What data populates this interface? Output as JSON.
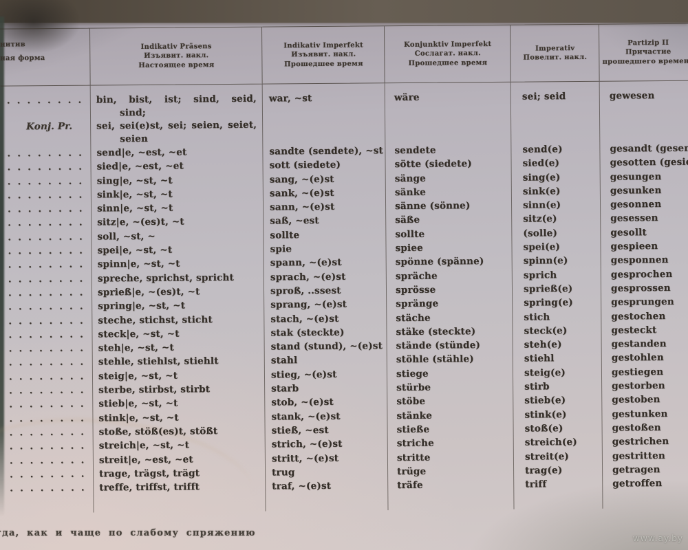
{
  "page": {
    "bottom_note": "гда, как и чаще по слабому спряжению",
    "watermark": "www.ay.by",
    "colors": {
      "paper": "#c2bec3",
      "paper_bottom": "#d2c9c8",
      "top_band": "#574f44",
      "ink": "#332d27",
      "rule": "#3c362e"
    }
  },
  "table": {
    "dot_leader": ". . . . . . . .",
    "headers": {
      "infinitive": {
        "lines": [
          "нитив",
          "ная форма"
        ]
      },
      "praesens": {
        "lines": [
          "Indikativ Präsens",
          "Изъявит. накл.",
          "Настоящее время"
        ]
      },
      "imperfekt": {
        "lines": [
          "Indikativ Imperfekt",
          "Изъявит. накл.",
          "Прошедшее время"
        ]
      },
      "konjunktiv": {
        "lines": [
          "Konjunktiv Imperfekt",
          "Сослагат. накл.",
          "Прошедшее время"
        ]
      },
      "imperativ": {
        "lines": [
          "Imperativ",
          "Повелит. накл."
        ]
      },
      "partizip": {
        "lines": [
          "Partizip II",
          "Причастие",
          "прошедшего времени"
        ]
      }
    },
    "sein_row": {
      "leader": ". . . . . . . .",
      "label": "Konj. Pr.",
      "praesens_lines": [
        "bin, bist, ist; sind, seid,",
        "sind;",
        "sei, sei(e)st, sei; seien, seiet,",
        "seien"
      ],
      "imperfekt": "war, ~st",
      "konjunktiv": "wäre",
      "imperativ": "sei; seid",
      "partizip": "gewesen"
    },
    "rows": [
      {
        "praesens": "send|e, ~est, ~et",
        "imperfekt": "sandte (sendete), ~st",
        "konjunktiv": "sendete",
        "imperativ": "send(e)",
        "partizip": "gesandt (gesendet)"
      },
      {
        "praesens": "sied|e, ~est, ~et",
        "imperfekt": "sott (siedete)",
        "konjunktiv": "sötte (siedete)",
        "imperativ": "sied(e)",
        "partizip": "gesotten (gesiedet)"
      },
      {
        "praesens": "sing|e, ~st, ~t",
        "imperfekt": "sang, ~(e)st",
        "konjunktiv": "sänge",
        "imperativ": "sing(e)",
        "partizip": "gesungen"
      },
      {
        "praesens": "sink|e, ~st, ~t",
        "imperfekt": "sank, ~(e)st",
        "konjunktiv": "sänke",
        "imperativ": "sink(e)",
        "partizip": "gesunken"
      },
      {
        "praesens": "sinn|e, ~st, ~t",
        "imperfekt": "sann, ~(e)st",
        "konjunktiv": "sänne (sönne)",
        "imperativ": "sinn(e)",
        "partizip": "gesonnen"
      },
      {
        "praesens": "sitz|e, ~(es)t, ~t",
        "imperfekt": "saß, ~est",
        "konjunktiv": "säße",
        "imperativ": "sitz(e)",
        "partizip": "gesessen"
      },
      {
        "praesens": "soll, ~st, ~",
        "imperfekt": "sollte",
        "konjunktiv": "sollte",
        "imperativ": "(solle)",
        "partizip": "gesollt"
      },
      {
        "praesens": "spei|e, ~st, ~t",
        "imperfekt": "spie",
        "konjunktiv": "spiee",
        "imperativ": "spei(e)",
        "partizip": "gespieen"
      },
      {
        "praesens": "spinn|e, ~st, ~t",
        "imperfekt": "spann, ~(e)st",
        "konjunktiv": "spönne (spänne)",
        "imperativ": "spinn(e)",
        "partizip": "gesponnen"
      },
      {
        "praesens": "spreche, sprichst, spricht",
        "imperfekt": "sprach, ~(e)st",
        "konjunktiv": "spräche",
        "imperativ": "sprich",
        "partizip": "gesprochen"
      },
      {
        "praesens": "sprieß|e, ~(es)t, ~t",
        "imperfekt": "sproß, ..ssest",
        "konjunktiv": "sprösse",
        "imperativ": "sprieß(e)",
        "partizip": "gesprossen"
      },
      {
        "praesens": "spring|e, ~st, ~t",
        "imperfekt": "sprang, ~(e)st",
        "konjunktiv": "spränge",
        "imperativ": "spring(e)",
        "partizip": "gesprungen"
      },
      {
        "praesens": "steche, stichst, sticht",
        "imperfekt": "stach, ~(e)st",
        "konjunktiv": "stäche",
        "imperativ": "stich",
        "partizip": "gestochen"
      },
      {
        "praesens": "steck|e, ~st, ~t",
        "imperfekt": "stak (steckte)",
        "konjunktiv": "stäke (steckte)",
        "imperativ": "steck(e)",
        "partizip": "gesteckt"
      },
      {
        "praesens": "steh|e, ~st, ~t",
        "imperfekt": "stand (stund), ~(e)st",
        "konjunktiv": "stände (stünde)",
        "imperativ": "steh(e)",
        "partizip": "gestanden"
      },
      {
        "praesens": "stehle, stiehlst, stiehlt",
        "imperfekt": "stahl",
        "konjunktiv": "stöhle (stähle)",
        "imperativ": "stiehl",
        "partizip": "gestohlen"
      },
      {
        "praesens": "steig|e, ~st, ~t",
        "imperfekt": "stieg, ~(e)st",
        "konjunktiv": "stiege",
        "imperativ": "steig(e)",
        "partizip": "gestiegen"
      },
      {
        "praesens": "sterbe, stirbst, stirbt",
        "imperfekt": "starb",
        "konjunktiv": "stürbe",
        "imperativ": "stirb",
        "partizip": "gestorben"
      },
      {
        "praesens": "stieb|e, ~st, ~t",
        "imperfekt": "stob, ~(e)st",
        "konjunktiv": "stöbe",
        "imperativ": "stieb(e)",
        "partizip": "gestoben"
      },
      {
        "praesens": "stink|e, ~st, ~t",
        "imperfekt": "stank, ~(e)st",
        "konjunktiv": "stänke",
        "imperativ": "stink(e)",
        "partizip": "gestunken"
      },
      {
        "praesens": "stoße, stöß(es)t, stößt",
        "imperfekt": "stieß, ~est",
        "konjunktiv": "stieße",
        "imperativ": "stoß(e)",
        "partizip": "gestoßen"
      },
      {
        "praesens": "streich|e, ~st, ~t",
        "imperfekt": "strich, ~(e)st",
        "konjunktiv": "striche",
        "imperativ": "streich(e)",
        "partizip": "gestrichen"
      },
      {
        "praesens": "streit|e, ~est, ~et",
        "imperfekt": "stritt, ~(e)st",
        "konjunktiv": "stritte",
        "imperativ": "streit(e)",
        "partizip": "gestritten"
      },
      {
        "praesens": "trage, trägst, trägt",
        "imperfekt": "trug",
        "konjunktiv": "trüge",
        "imperativ": "trag(e)",
        "partizip": "getragen"
      },
      {
        "praesens": "treffe, triffst, trifft",
        "imperfekt": "traf, ~(e)st",
        "konjunktiv": "träfe",
        "imperativ": "triff",
        "partizip": "getroffen"
      }
    ]
  }
}
